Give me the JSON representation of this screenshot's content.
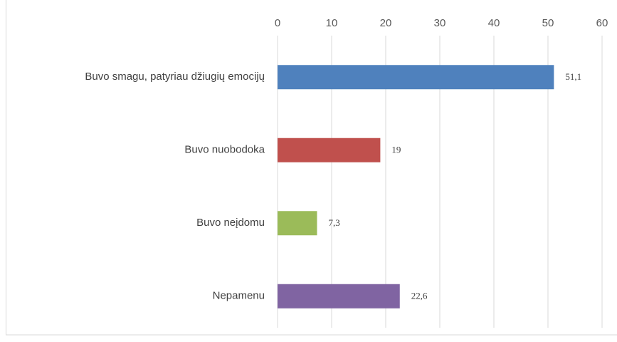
{
  "chart_data": {
    "type": "bar",
    "orientation": "horizontal",
    "categories": [
      "Buvo smagu, patyriau džiugių emocijų",
      "Buvo nuobodoka",
      "Buvo neįdomu",
      "Nepamenu"
    ],
    "values": [
      51.1,
      19,
      7.3,
      22.6
    ],
    "value_labels": [
      "51,1",
      "19",
      "7,3",
      "22,6"
    ],
    "colors": [
      "#4f81bd",
      "#c0504d",
      "#9bbb59",
      "#8064a2"
    ],
    "xlim": [
      0,
      60
    ],
    "xticks": [
      0,
      10,
      20,
      30,
      40,
      50,
      60
    ],
    "grid": true
  }
}
